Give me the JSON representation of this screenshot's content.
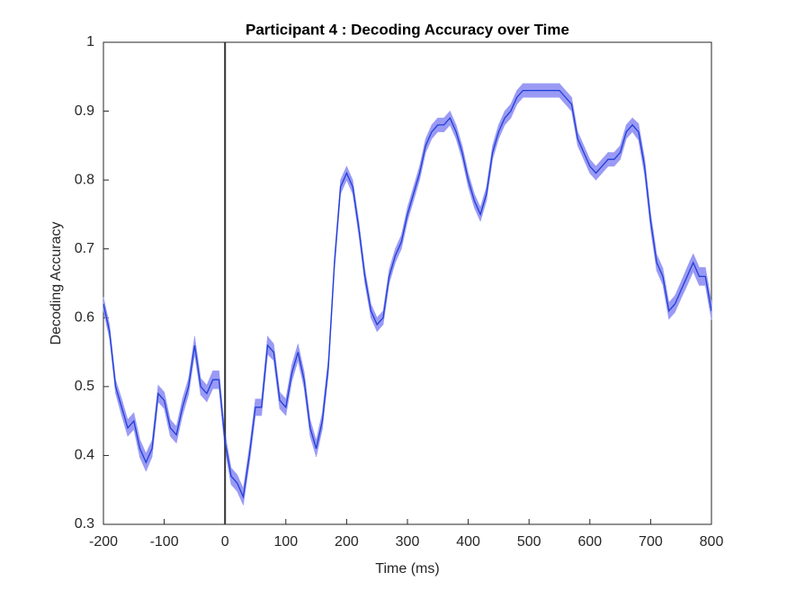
{
  "chart_data": {
    "type": "line",
    "title": "Participant 4 : Decoding Accuracy over Time",
    "xlabel": "Time (ms)",
    "ylabel": "Decoding Accuracy",
    "x": [
      -200,
      -190,
      -180,
      -170,
      -160,
      -150,
      -140,
      -130,
      -120,
      -110,
      -100,
      -90,
      -80,
      -70,
      -60,
      -50,
      -40,
      -30,
      -20,
      -10,
      0,
      10,
      20,
      30,
      40,
      50,
      60,
      70,
      80,
      90,
      100,
      110,
      120,
      130,
      140,
      150,
      160,
      170,
      180,
      190,
      200,
      210,
      220,
      230,
      240,
      250,
      260,
      270,
      280,
      290,
      300,
      310,
      320,
      330,
      340,
      350,
      360,
      370,
      380,
      390,
      400,
      410,
      420,
      430,
      440,
      450,
      460,
      470,
      480,
      490,
      500,
      510,
      520,
      530,
      540,
      550,
      560,
      570,
      580,
      590,
      600,
      610,
      620,
      630,
      640,
      650,
      660,
      670,
      680,
      690,
      700,
      710,
      720,
      730,
      740,
      750,
      760,
      770,
      780,
      790,
      800
    ],
    "values": [
      0.62,
      0.58,
      0.5,
      0.47,
      0.44,
      0.45,
      0.41,
      0.39,
      0.41,
      0.49,
      0.48,
      0.44,
      0.43,
      0.47,
      0.5,
      0.56,
      0.5,
      0.49,
      0.51,
      0.51,
      0.42,
      0.37,
      0.36,
      0.34,
      0.4,
      0.47,
      0.47,
      0.56,
      0.55,
      0.48,
      0.47,
      0.52,
      0.55,
      0.51,
      0.44,
      0.41,
      0.45,
      0.53,
      0.68,
      0.79,
      0.81,
      0.79,
      0.73,
      0.66,
      0.61,
      0.59,
      0.6,
      0.66,
      0.69,
      0.71,
      0.75,
      0.78,
      0.81,
      0.85,
      0.87,
      0.88,
      0.88,
      0.89,
      0.87,
      0.84,
      0.8,
      0.77,
      0.75,
      0.78,
      0.84,
      0.87,
      0.89,
      0.9,
      0.92,
      0.93,
      0.93,
      0.93,
      0.93,
      0.93,
      0.93,
      0.93,
      0.92,
      0.91,
      0.86,
      0.84,
      0.82,
      0.81,
      0.82,
      0.83,
      0.83,
      0.84,
      0.87,
      0.88,
      0.87,
      0.82,
      0.74,
      0.68,
      0.66,
      0.61,
      0.62,
      0.64,
      0.66,
      0.68,
      0.66,
      0.66,
      0.61
    ],
    "error": [
      0.01,
      0.01,
      0.01,
      0.012,
      0.012,
      0.012,
      0.013,
      0.013,
      0.012,
      0.012,
      0.012,
      0.012,
      0.012,
      0.012,
      0.012,
      0.013,
      0.012,
      0.012,
      0.013,
      0.013,
      0.012,
      0.012,
      0.012,
      0.012,
      0.012,
      0.012,
      0.012,
      0.013,
      0.012,
      0.012,
      0.012,
      0.012,
      0.012,
      0.012,
      0.012,
      0.012,
      0.012,
      0.012,
      0.01,
      0.01,
      0.01,
      0.01,
      0.01,
      0.01,
      0.01,
      0.01,
      0.01,
      0.01,
      0.01,
      0.01,
      0.01,
      0.01,
      0.01,
      0.01,
      0.01,
      0.01,
      0.01,
      0.01,
      0.01,
      0.01,
      0.01,
      0.01,
      0.01,
      0.01,
      0.01,
      0.01,
      0.01,
      0.01,
      0.01,
      0.01,
      0.01,
      0.01,
      0.01,
      0.01,
      0.01,
      0.01,
      0.01,
      0.01,
      0.01,
      0.01,
      0.01,
      0.01,
      0.01,
      0.01,
      0.01,
      0.01,
      0.01,
      0.01,
      0.012,
      0.012,
      0.012,
      0.012,
      0.012,
      0.012,
      0.012,
      0.012,
      0.013,
      0.013,
      0.013,
      0.013,
      0.013
    ],
    "color": "#1f3fd6",
    "band_color": "#9a9af5",
    "vline": 0,
    "vline_color": "#333333",
    "xlim": [
      -200,
      800
    ],
    "xticks": [
      -200,
      -100,
      0,
      100,
      200,
      300,
      400,
      500,
      600,
      700,
      800
    ],
    "ylim": [
      0.3,
      1
    ],
    "yticks": [
      0.3,
      0.4,
      0.5,
      0.6,
      0.7,
      0.8,
      0.9,
      1
    ]
  }
}
